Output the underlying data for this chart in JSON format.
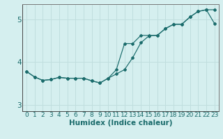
{
  "xlabel": "Humidex (Indice chaleur)",
  "background_color": "#d5efef",
  "grid_color": "#c0dede",
  "line_color": "#1a6b6b",
  "xlim": [
    -0.5,
    23.5
  ],
  "ylim": [
    2.85,
    5.35
  ],
  "yticks": [
    3,
    4,
    5
  ],
  "xticks": [
    0,
    1,
    2,
    3,
    4,
    5,
    6,
    7,
    8,
    9,
    10,
    11,
    12,
    13,
    14,
    15,
    16,
    17,
    18,
    19,
    20,
    21,
    22,
    23
  ],
  "curve1_x": [
    0,
    1,
    2,
    3,
    4,
    5,
    6,
    7,
    8,
    9,
    10,
    11,
    12,
    13,
    14,
    15,
    16,
    17,
    18,
    19,
    20,
    21,
    22,
    23
  ],
  "curve1_y": [
    3.78,
    3.65,
    3.57,
    3.59,
    3.64,
    3.62,
    3.62,
    3.62,
    3.56,
    3.51,
    3.62,
    3.72,
    3.82,
    4.1,
    4.45,
    4.61,
    4.62,
    4.78,
    4.88,
    4.88,
    5.05,
    5.18,
    5.22,
    4.9
  ],
  "curve2_x": [
    0,
    1,
    2,
    3,
    4,
    5,
    6,
    7,
    8,
    9,
    10,
    11,
    12,
    13,
    14,
    15,
    16,
    17,
    18,
    19,
    20,
    21,
    22,
    23
  ],
  "curve2_y": [
    3.78,
    3.65,
    3.57,
    3.59,
    3.64,
    3.62,
    3.62,
    3.62,
    3.56,
    3.51,
    3.62,
    3.82,
    4.43,
    4.43,
    4.62,
    4.62,
    4.62,
    4.78,
    4.88,
    4.88,
    5.05,
    5.18,
    5.22,
    5.22
  ],
  "font_color": "#1a6b6b",
  "tick_fontsize": 6.5,
  "label_fontsize": 7.5
}
